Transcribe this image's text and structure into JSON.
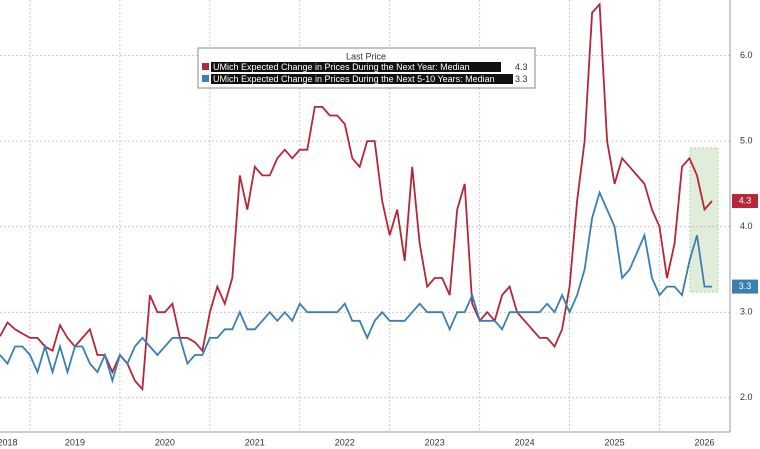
{
  "chart_data": {
    "type": "line",
    "legend_title": "Last Price",
    "categories": [
      null,
      "2018",
      null,
      null,
      null,
      null,
      null,
      null,
      null,
      null,
      "2019",
      null,
      null,
      null,
      null,
      null,
      null,
      null,
      null,
      null,
      null,
      null,
      "2020",
      null,
      null,
      null,
      null,
      null,
      null,
      null,
      null,
      null,
      null,
      null,
      "2021",
      null,
      null,
      null,
      null,
      null,
      null,
      null,
      null,
      null,
      null,
      null,
      "2022",
      null,
      null,
      null,
      null,
      null,
      null,
      null,
      null,
      null,
      null,
      null,
      "2023",
      null,
      null,
      null,
      null,
      null,
      null,
      null,
      null,
      null,
      null,
      null,
      "2024",
      null,
      null,
      null,
      null,
      null,
      null,
      null,
      null,
      null,
      null,
      null,
      "2025",
      null,
      null,
      null,
      null,
      null,
      null,
      null,
      null,
      null,
      null,
      null,
      "2026",
      null
    ],
    "series": [
      {
        "name": "UMich Expected Change in Prices During the Next Year: Median",
        "color": "#b5263a",
        "values": [
          2.72,
          2.88,
          2.8,
          2.75,
          2.7,
          2.7,
          2.6,
          2.55,
          2.85,
          2.7,
          2.6,
          2.7,
          2.8,
          2.5,
          2.5,
          2.3,
          2.5,
          2.4,
          2.2,
          2.1,
          3.2,
          3.0,
          3.0,
          3.1,
          2.7,
          2.7,
          2.65,
          2.55,
          3.0,
          3.3,
          3.1,
          3.4,
          4.6,
          4.2,
          4.7,
          4.6,
          4.6,
          4.8,
          4.9,
          4.8,
          4.9,
          4.9,
          5.4,
          5.4,
          5.3,
          5.3,
          5.2,
          4.8,
          4.7,
          5.0,
          5.0,
          4.3,
          3.9,
          4.2,
          3.6,
          4.7,
          3.8,
          3.3,
          3.4,
          3.4,
          3.2,
          4.2,
          4.5,
          3.1,
          2.9,
          3.0,
          2.9,
          3.2,
          3.3,
          3.0,
          2.9,
          2.8,
          2.7,
          2.7,
          2.6,
          2.8,
          3.3,
          4.3,
          5.0,
          6.5,
          6.6,
          5.0,
          4.5,
          4.8,
          4.7,
          4.6,
          4.5,
          4.2,
          4.0,
          3.4,
          3.8,
          4.7,
          4.8,
          4.6,
          4.2,
          4.3
        ]
      },
      {
        "name": "UMich Expected Change in Prices During the Next 5-10 Years: Median",
        "color": "#3a7fb3",
        "values": [
          2.5,
          2.4,
          2.6,
          2.6,
          2.5,
          2.3,
          2.6,
          2.3,
          2.6,
          2.3,
          2.6,
          2.6,
          2.4,
          2.3,
          2.5,
          2.2,
          2.5,
          2.4,
          2.6,
          2.7,
          2.6,
          2.5,
          2.6,
          2.7,
          2.7,
          2.4,
          2.5,
          2.5,
          2.7,
          2.7,
          2.8,
          2.8,
          3.0,
          2.8,
          2.8,
          2.9,
          3.0,
          2.9,
          3.0,
          2.9,
          3.1,
          3.0,
          3.0,
          3.0,
          3.0,
          3.0,
          3.1,
          2.9,
          2.9,
          2.7,
          2.9,
          3.0,
          2.9,
          2.9,
          2.9,
          3.0,
          3.1,
          3.0,
          3.0,
          3.0,
          2.8,
          3.0,
          3.0,
          3.2,
          2.9,
          2.9,
          2.9,
          2.8,
          3.0,
          3.0,
          3.0,
          3.0,
          3.0,
          3.1,
          3.0,
          3.2,
          3.0,
          3.2,
          3.5,
          4.1,
          4.4,
          4.2,
          4.0,
          3.4,
          3.5,
          3.7,
          3.9,
          3.4,
          3.2,
          3.3,
          3.3,
          3.2,
          3.6,
          3.9,
          3.3,
          3.3
        ]
      }
    ],
    "ylim": [
      1.6,
      6.65
    ],
    "yticks": [
      {
        "value": 2,
        "label": "2.0"
      },
      {
        "value": 3,
        "label": "3.0"
      },
      {
        "value": 4,
        "label": "4.0"
      },
      {
        "value": 5,
        "label": "5.0"
      },
      {
        "value": 6,
        "label": "6.0"
      }
    ],
    "grid": true
  }
}
